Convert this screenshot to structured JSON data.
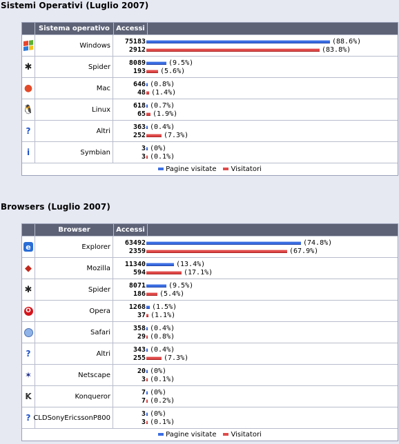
{
  "os_section": {
    "title": "Sistemi Operativi (Luglio 2007)",
    "col_name": "Sistema operativo",
    "col_access": "Accessi",
    "rows": [
      {
        "icon": "windows-icon",
        "name": "Windows",
        "pages": "75183",
        "pages_pct": "(88.6%)",
        "visitors": "2912",
        "visitors_pct": "(83.8%)",
        "pages_frac": 0.886,
        "visitors_frac": 0.838
      },
      {
        "icon": "spider-icon",
        "name": "Spider",
        "pages": "8089",
        "pages_pct": "(9.5%)",
        "visitors": "193",
        "visitors_pct": "(5.6%)",
        "pages_frac": 0.095,
        "visitors_frac": 0.056
      },
      {
        "icon": "apple-icon",
        "name": "Mac",
        "pages": "646",
        "pages_pct": "(0.8%)",
        "visitors": "48",
        "visitors_pct": "(1.4%)",
        "pages_frac": 0.008,
        "visitors_frac": 0.014
      },
      {
        "icon": "linux-penguin-icon",
        "name": "Linux",
        "pages": "618",
        "pages_pct": "(0.7%)",
        "visitors": "65",
        "visitors_pct": "(1.9%)",
        "pages_frac": 0.007,
        "visitors_frac": 0.019
      },
      {
        "icon": "question-icon",
        "name": "Altri",
        "pages": "363",
        "pages_pct": "(0.4%)",
        "visitors": "252",
        "visitors_pct": "(7.3%)",
        "pages_frac": 0.004,
        "visitors_frac": 0.073
      },
      {
        "icon": "info-icon",
        "name": "Symbian",
        "pages": "3",
        "pages_pct": "(0%)",
        "visitors": "3",
        "visitors_pct": "(0.1%)",
        "pages_frac": 0,
        "visitors_frac": 0.001
      }
    ],
    "legend_pages": "Pagine visitate",
    "legend_visitors": "Visitatori"
  },
  "browser_section": {
    "title": "Browsers (Luglio 2007)",
    "col_name": "Browser",
    "col_access": "Accessi",
    "rows": [
      {
        "icon": "internet-explorer-icon",
        "name": "Explorer",
        "pages": "63492",
        "pages_pct": "(74.8%)",
        "visitors": "2359",
        "visitors_pct": "(67.9%)",
        "pages_frac": 0.748,
        "visitors_frac": 0.679
      },
      {
        "icon": "mozilla-icon",
        "name": "Mozilla",
        "pages": "11340",
        "pages_pct": "(13.4%)",
        "visitors": "594",
        "visitors_pct": "(17.1%)",
        "pages_frac": 0.134,
        "visitors_frac": 0.171
      },
      {
        "icon": "spider-icon",
        "name": "Spider",
        "pages": "8071",
        "pages_pct": "(9.5%)",
        "visitors": "186",
        "visitors_pct": "(5.4%)",
        "pages_frac": 0.095,
        "visitors_frac": 0.054
      },
      {
        "icon": "opera-icon",
        "name": "Opera",
        "pages": "1268",
        "pages_pct": "(1.5%)",
        "visitors": "37",
        "visitors_pct": "(1.1%)",
        "pages_frac": 0.015,
        "visitors_frac": 0.011
      },
      {
        "icon": "safari-icon",
        "name": "Safari",
        "pages": "358",
        "pages_pct": "(0.4%)",
        "visitors": "29",
        "visitors_pct": "(0.8%)",
        "pages_frac": 0.004,
        "visitors_frac": 0.008
      },
      {
        "icon": "question-icon",
        "name": "Altri",
        "pages": "343",
        "pages_pct": "(0.4%)",
        "visitors": "255",
        "visitors_pct": "(7.3%)",
        "pages_frac": 0.004,
        "visitors_frac": 0.073
      },
      {
        "icon": "netscape-icon",
        "name": "Netscape",
        "pages": "20",
        "pages_pct": "(0%)",
        "visitors": "3",
        "visitors_pct": "(0.1%)",
        "pages_frac": 0,
        "visitors_frac": 0.001
      },
      {
        "icon": "konqueror-icon",
        "name": "Konqueror",
        "pages": "7",
        "pages_pct": "(0%)",
        "visitors": "7",
        "visitors_pct": "(0.2%)",
        "pages_frac": 0,
        "visitors_frac": 0.002
      },
      {
        "icon": "question-icon",
        "name": "CLDSonyEricssonP800",
        "pages": "3",
        "pages_pct": "(0%)",
        "visitors": "3",
        "visitors_pct": "(0.1%)",
        "pages_frac": 0,
        "visitors_frac": 0.001
      }
    ],
    "legend_pages": "Pagine visitate",
    "legend_visitors": "Visitatori"
  },
  "colors": {
    "pages": "#3b6ee3",
    "visitors": "#e04a4a",
    "header": "#5d6276",
    "background": "#e6e8f2"
  }
}
